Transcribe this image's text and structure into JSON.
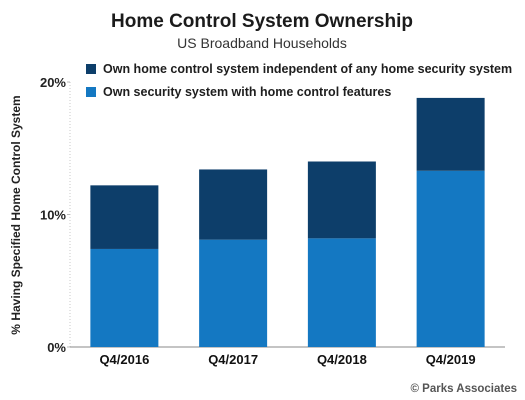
{
  "chart_data": {
    "type": "bar",
    "stacked": true,
    "title": "Home Control System Ownership",
    "subtitle": "US Broadband Households",
    "ylabel": "% Having Specified Home Control System",
    "xlabel": "",
    "categories": [
      "Q4/2016",
      "Q4/2017",
      "Q4/2018",
      "Q4/2019"
    ],
    "series": [
      {
        "name": "Own security system with home control features",
        "values": [
          7.4,
          8.1,
          8.2,
          13.3
        ],
        "color": "#1478c2"
      },
      {
        "name": "Own home control system independent of any home security system",
        "values": [
          4.8,
          5.3,
          5.8,
          5.5
        ],
        "color": "#0d3e6a"
      }
    ],
    "ylim": [
      0,
      20
    ],
    "yticks": [
      0,
      10,
      20
    ],
    "ytick_labels": [
      "0%",
      "10%",
      "20%"
    ],
    "grid": false,
    "legend": "top",
    "source": "© Parks Associates"
  }
}
